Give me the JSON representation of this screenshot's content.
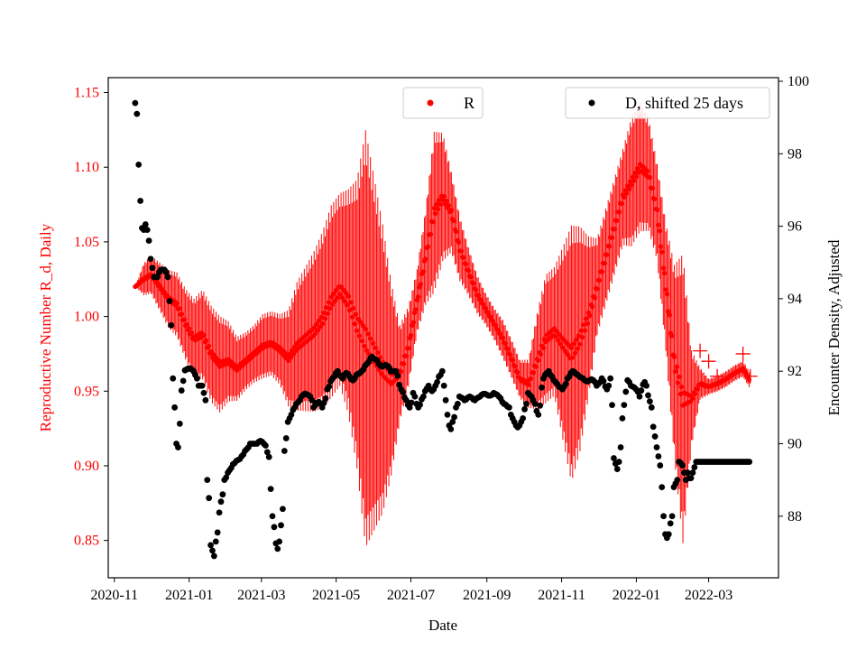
{
  "chart_data": {
    "type": "scatter",
    "title": "",
    "xlabel": "Date",
    "ylabel_left": "Reproductive Number R_d, Daily",
    "ylabel_right": "Encounter Density, Adjusted",
    "colors": {
      "R": "#ff0000",
      "D": "#000000",
      "axis_left": "#ff0000",
      "axis_right": "#000000"
    },
    "x_range": [
      "2020-10-27",
      "2022-04-27"
    ],
    "x_ticks": [
      "2020-11",
      "2021-01",
      "2021-03",
      "2021-05",
      "2021-07",
      "2021-09",
      "2021-11",
      "2022-01",
      "2022-03"
    ],
    "y_left_range": [
      0.825,
      1.16
    ],
    "y_left_ticks": [
      "0.85",
      "0.90",
      "0.95",
      "1.00",
      "1.05",
      "1.10",
      "1.15"
    ],
    "y_right_range": [
      86.3,
      100.1
    ],
    "y_right_ticks": [
      "88",
      "90",
      "92",
      "94",
      "96",
      "98",
      "100"
    ],
    "legend": [
      {
        "label": "R",
        "color": "#ff0000",
        "placement": "top-center"
      },
      {
        "label": "D, shifted 25 days",
        "color": "#000000",
        "placement": "top-right"
      }
    ],
    "series": [
      {
        "name": "R",
        "axis": "left",
        "marker": "circle-with-errorbars",
        "points": [
          [
            "2020-11-18",
            1.02,
            0.0
          ],
          [
            "2020-11-25",
            1.025,
            0.01
          ],
          [
            "2020-12-01",
            1.028,
            0.012
          ],
          [
            "2020-12-08",
            1.02,
            0.015
          ],
          [
            "2020-12-15",
            1.012,
            0.018
          ],
          [
            "2020-12-22",
            1.008,
            0.02
          ],
          [
            "2020-12-29",
            0.995,
            0.022
          ],
          [
            "2021-01-05",
            0.985,
            0.025
          ],
          [
            "2021-01-12",
            0.988,
            0.028
          ],
          [
            "2021-01-19",
            0.975,
            0.03
          ],
          [
            "2021-01-26",
            0.968,
            0.03
          ],
          [
            "2021-02-02",
            0.97,
            0.025
          ],
          [
            "2021-02-09",
            0.965,
            0.02
          ],
          [
            "2021-02-16",
            0.97,
            0.018
          ],
          [
            "2021-02-23",
            0.975,
            0.018
          ],
          [
            "2021-03-02",
            0.98,
            0.02
          ],
          [
            "2021-03-09",
            0.982,
            0.02
          ],
          [
            "2021-03-16",
            0.978,
            0.022
          ],
          [
            "2021-03-23",
            0.972,
            0.03
          ],
          [
            "2021-03-30",
            0.98,
            0.04
          ],
          [
            "2021-04-06",
            0.985,
            0.045
          ],
          [
            "2021-04-13",
            0.99,
            0.05
          ],
          [
            "2021-04-20",
            0.998,
            0.055
          ],
          [
            "2021-04-27",
            1.01,
            0.06
          ],
          [
            "2021-05-04",
            1.018,
            0.06
          ],
          [
            "2021-05-11",
            1.01,
            0.07
          ],
          [
            "2021-05-18",
            0.995,
            0.09
          ],
          [
            "2021-05-25",
            0.985,
            0.13
          ],
          [
            "2021-06-01",
            0.975,
            0.11
          ],
          [
            "2021-06-08",
            0.965,
            0.09
          ],
          [
            "2021-06-15",
            0.958,
            0.06
          ],
          [
            "2021-06-22",
            0.962,
            0.03
          ],
          [
            "2021-06-29",
            0.98,
            0.025
          ],
          [
            "2021-07-06",
            1.01,
            0.02
          ],
          [
            "2021-07-13",
            1.04,
            0.03
          ],
          [
            "2021-07-20",
            1.07,
            0.05
          ],
          [
            "2021-07-27",
            1.08,
            0.04
          ],
          [
            "2021-08-03",
            1.07,
            0.025
          ],
          [
            "2021-08-10",
            1.045,
            0.02
          ],
          [
            "2021-08-17",
            1.03,
            0.015
          ],
          [
            "2021-08-24",
            1.015,
            0.012
          ],
          [
            "2021-08-31",
            1.005,
            0.01
          ],
          [
            "2021-09-07",
            0.995,
            0.01
          ],
          [
            "2021-09-14",
            0.985,
            0.012
          ],
          [
            "2021-09-21",
            0.972,
            0.012
          ],
          [
            "2021-09-28",
            0.958,
            0.012
          ],
          [
            "2021-10-05",
            0.955,
            0.015
          ],
          [
            "2021-10-12",
            0.97,
            0.03
          ],
          [
            "2021-10-19",
            0.985,
            0.04
          ],
          [
            "2021-10-26",
            0.99,
            0.04
          ],
          [
            "2021-11-02",
            0.982,
            0.06
          ],
          [
            "2021-11-09",
            0.975,
            0.08
          ],
          [
            "2021-11-16",
            0.985,
            0.07
          ],
          [
            "2021-11-23",
            1.0,
            0.05
          ],
          [
            "2021-11-30",
            1.02,
            0.03
          ],
          [
            "2021-12-07",
            1.04,
            0.03
          ],
          [
            "2021-12-14",
            1.06,
            0.03
          ],
          [
            "2021-12-21",
            1.08,
            0.03
          ],
          [
            "2021-12-28",
            1.09,
            0.04
          ],
          [
            "2022-01-04",
            1.1,
            0.04
          ],
          [
            "2022-01-11",
            1.095,
            0.035
          ],
          [
            "2022-01-18",
            1.07,
            0.03
          ],
          [
            "2022-01-25",
            1.02,
            0.04
          ],
          [
            "2022-02-01",
            0.97,
            0.06
          ],
          [
            "2022-02-08",
            0.945,
            0.09
          ],
          [
            "2022-02-15",
            0.945,
            0.03
          ],
          [
            "2022-02-22",
            0.955,
            0.01
          ],
          [
            "2022-03-01",
            0.953,
            0.005
          ],
          [
            "2022-03-08",
            0.955,
            0.005
          ],
          [
            "2022-03-15",
            0.958,
            0.005
          ],
          [
            "2022-03-22",
            0.962,
            0.005
          ],
          [
            "2022-03-29",
            0.965,
            0.005
          ],
          [
            "2022-04-03",
            0.958,
            0.005
          ]
        ],
        "outliers": [
          [
            "2022-02-22",
            0.977
          ],
          [
            "2022-03-01",
            0.97
          ],
          [
            "2022-03-08",
            0.96
          ],
          [
            "2022-03-29",
            0.975
          ],
          [
            "2022-04-04",
            0.96
          ]
        ]
      },
      {
        "name": "D, shifted 25 days",
        "axis": "right",
        "marker": "circle",
        "points": [
          [
            "2020-11-18",
            99.4
          ],
          [
            "2020-11-19",
            99.1
          ],
          [
            "2020-11-20",
            98.4
          ],
          [
            "2020-11-21",
            97.7
          ],
          [
            "2020-11-22",
            96.7
          ],
          [
            "2020-11-23",
            96.0
          ],
          [
            "2020-11-25",
            95.9
          ],
          [
            "2020-11-27",
            96.2
          ],
          [
            "2020-11-29",
            95.6
          ],
          [
            "2020-12-01",
            95.1
          ],
          [
            "2020-12-03",
            94.6
          ],
          [
            "2020-12-06",
            94.6
          ],
          [
            "2020-12-09",
            94.8
          ],
          [
            "2020-12-12",
            94.8
          ],
          [
            "2020-12-15",
            94.6
          ],
          [
            "2020-12-18",
            92.6
          ],
          [
            "2020-12-20",
            91.0
          ],
          [
            "2020-12-21",
            90.7
          ],
          [
            "2020-12-22",
            90.0
          ],
          [
            "2020-12-23",
            89.9
          ],
          [
            "2020-12-25",
            91.2
          ],
          [
            "2020-12-28",
            92.0
          ],
          [
            "2021-01-01",
            92.1
          ],
          [
            "2021-01-05",
            92.0
          ],
          [
            "2021-01-09",
            91.6
          ],
          [
            "2021-01-12",
            91.6
          ],
          [
            "2021-01-14",
            91.2
          ],
          [
            "2021-01-15",
            89.8
          ],
          [
            "2021-01-16",
            89.0
          ],
          [
            "2021-01-17",
            88.5
          ],
          [
            "2021-01-18",
            87.5
          ],
          [
            "2021-01-19",
            87.2
          ],
          [
            "2021-01-21",
            86.9
          ],
          [
            "2021-01-23",
            87.3
          ],
          [
            "2021-01-25",
            87.8
          ],
          [
            "2021-01-27",
            88.4
          ],
          [
            "2021-01-30",
            89.0
          ],
          [
            "2021-02-02",
            89.2
          ],
          [
            "2021-02-05",
            89.4
          ],
          [
            "2021-02-08",
            89.5
          ],
          [
            "2021-02-12",
            89.6
          ],
          [
            "2021-02-16",
            89.8
          ],
          [
            "2021-02-20",
            90.0
          ],
          [
            "2021-02-25",
            90.0
          ],
          [
            "2021-03-01",
            90.1
          ],
          [
            "2021-03-05",
            89.9
          ],
          [
            "2021-03-08",
            89.5
          ],
          [
            "2021-03-10",
            88.0
          ],
          [
            "2021-03-12",
            87.4
          ],
          [
            "2021-03-14",
            87.1
          ],
          [
            "2021-03-16",
            87.3
          ],
          [
            "2021-03-18",
            88.2
          ],
          [
            "2021-03-20",
            89.8
          ],
          [
            "2021-03-22",
            90.5
          ],
          [
            "2021-03-25",
            90.8
          ],
          [
            "2021-03-28",
            91.0
          ],
          [
            "2021-04-01",
            91.2
          ],
          [
            "2021-04-05",
            91.4
          ],
          [
            "2021-04-10",
            91.3
          ],
          [
            "2021-04-13",
            91.0
          ],
          [
            "2021-04-16",
            91.2
          ],
          [
            "2021-04-20",
            91.0
          ],
          [
            "2021-04-24",
            91.5
          ],
          [
            "2021-04-28",
            91.8
          ],
          [
            "2021-05-02",
            92.0
          ],
          [
            "2021-05-06",
            91.8
          ],
          [
            "2021-05-10",
            92.0
          ],
          [
            "2021-05-14",
            91.7
          ],
          [
            "2021-05-18",
            91.9
          ],
          [
            "2021-05-22",
            92.0
          ],
          [
            "2021-05-26",
            92.2
          ],
          [
            "2021-05-30",
            92.4
          ],
          [
            "2021-06-03",
            92.3
          ],
          [
            "2021-06-07",
            92.1
          ],
          [
            "2021-06-11",
            92.2
          ],
          [
            "2021-06-15",
            92.0
          ],
          [
            "2021-06-19",
            92.0
          ],
          [
            "2021-06-23",
            91.5
          ],
          [
            "2021-06-27",
            91.2
          ],
          [
            "2021-06-30",
            91.0
          ],
          [
            "2021-07-03",
            91.4
          ],
          [
            "2021-07-07",
            91.0
          ],
          [
            "2021-07-11",
            91.3
          ],
          [
            "2021-07-15",
            91.6
          ],
          [
            "2021-07-19",
            91.4
          ],
          [
            "2021-07-23",
            91.8
          ],
          [
            "2021-07-27",
            92.0
          ],
          [
            "2021-07-29",
            91.2
          ],
          [
            "2021-07-31",
            90.8
          ],
          [
            "2021-08-02",
            90.2
          ],
          [
            "2021-08-04",
            90.6
          ],
          [
            "2021-08-07",
            91.0
          ],
          [
            "2021-08-10",
            91.3
          ],
          [
            "2021-08-14",
            91.2
          ],
          [
            "2021-08-18",
            91.3
          ],
          [
            "2021-08-22",
            91.2
          ],
          [
            "2021-08-26",
            91.3
          ],
          [
            "2021-08-30",
            91.4
          ],
          [
            "2021-09-03",
            91.3
          ],
          [
            "2021-09-07",
            91.4
          ],
          [
            "2021-09-11",
            91.3
          ],
          [
            "2021-09-15",
            91.1
          ],
          [
            "2021-09-19",
            91.0
          ],
          [
            "2021-09-23",
            90.6
          ],
          [
            "2021-09-27",
            90.4
          ],
          [
            "2021-10-01",
            90.8
          ],
          [
            "2021-10-05",
            91.4
          ],
          [
            "2021-10-09",
            91.2
          ],
          [
            "2021-10-13",
            90.8
          ],
          [
            "2021-10-17",
            91.8
          ],
          [
            "2021-10-21",
            92.0
          ],
          [
            "2021-10-25",
            91.8
          ],
          [
            "2021-10-29",
            91.6
          ],
          [
            "2021-11-02",
            91.5
          ],
          [
            "2021-11-06",
            91.8
          ],
          [
            "2021-11-10",
            92.0
          ],
          [
            "2021-11-14",
            91.9
          ],
          [
            "2021-11-18",
            91.8
          ],
          [
            "2021-11-22",
            91.7
          ],
          [
            "2021-11-26",
            91.8
          ],
          [
            "2021-11-30",
            91.6
          ],
          [
            "2021-12-04",
            91.8
          ],
          [
            "2021-12-08",
            91.5
          ],
          [
            "2021-12-11",
            91.8
          ],
          [
            "2021-12-14",
            89.6
          ],
          [
            "2021-12-16",
            89.3
          ],
          [
            "2021-12-18",
            89.5
          ],
          [
            "2021-12-21",
            90.7
          ],
          [
            "2021-12-24",
            91.8
          ],
          [
            "2021-12-28",
            91.6
          ],
          [
            "2022-01-01",
            91.5
          ],
          [
            "2022-01-04",
            91.3
          ],
          [
            "2022-01-07",
            91.8
          ],
          [
            "2022-01-10",
            91.5
          ],
          [
            "2022-01-13",
            91.0
          ],
          [
            "2022-01-16",
            90.2
          ],
          [
            "2022-01-18",
            89.9
          ],
          [
            "2022-01-20",
            89.4
          ],
          [
            "2022-01-22",
            88.8
          ],
          [
            "2022-01-23",
            88.0
          ],
          [
            "2022-01-24",
            87.6
          ],
          [
            "2022-01-26",
            87.4
          ],
          [
            "2022-01-28",
            87.6
          ],
          [
            "2022-01-30",
            88.0
          ],
          [
            "2022-02-01",
            88.8
          ],
          [
            "2022-02-03",
            89.0
          ],
          [
            "2022-02-05",
            89.5
          ],
          [
            "2022-02-08",
            89.4
          ],
          [
            "2022-02-10",
            89.0
          ],
          [
            "2022-02-12",
            89.2
          ],
          [
            "2022-02-14",
            88.9
          ],
          [
            "2022-02-18",
            89.5
          ],
          [
            "2022-02-25",
            89.5
          ],
          [
            "2022-03-04",
            89.5
          ],
          [
            "2022-03-11",
            89.5
          ],
          [
            "2022-03-18",
            89.5
          ],
          [
            "2022-03-25",
            89.5
          ],
          [
            "2022-04-01",
            89.5
          ],
          [
            "2022-04-04",
            89.5
          ]
        ]
      }
    ]
  }
}
